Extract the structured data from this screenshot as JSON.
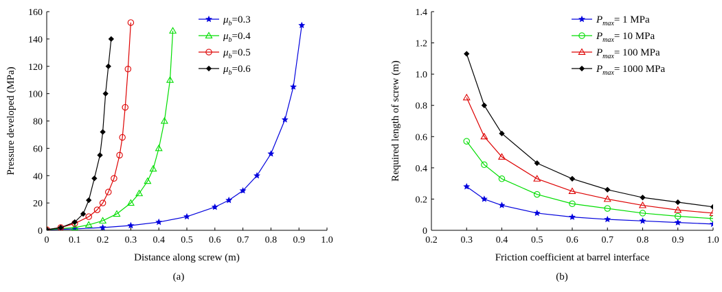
{
  "chart_data": [
    {
      "type": "line",
      "panel_label": "(a)",
      "xlabel": "Distance along screw (m)",
      "ylabel": "Pressure developed (MPa)",
      "xlim": [
        0,
        1.0
      ],
      "ylim": [
        0,
        160
      ],
      "xticks": [
        "0",
        "0.1",
        "0.2",
        "0.3",
        "0.4",
        "0.5",
        "0.6",
        "0.7",
        "0.8",
        "0.9",
        "1.0"
      ],
      "yticks": [
        "0",
        "20",
        "40",
        "60",
        "80",
        "100",
        "120",
        "140",
        "160"
      ],
      "legend_position": "top-right",
      "series": [
        {
          "name_symbol": "μ",
          "name_sub": "b",
          "name_value": "=0.3",
          "color": "#0000dd",
          "marker": "star",
          "x": [
            0,
            0.1,
            0.2,
            0.3,
            0.4,
            0.5,
            0.6,
            0.65,
            0.7,
            0.75,
            0.8,
            0.85,
            0.88,
            0.91
          ],
          "y": [
            0.5,
            1,
            2,
            3.5,
            6,
            10,
            17,
            22,
            29,
            40,
            56,
            81,
            105,
            150
          ]
        },
        {
          "name_symbol": "μ",
          "name_sub": "b",
          "name_value": "=0.4",
          "color": "#00dd00",
          "marker": "triangle",
          "x": [
            0,
            0.1,
            0.15,
            0.2,
            0.25,
            0.3,
            0.33,
            0.36,
            0.38,
            0.4,
            0.42,
            0.44,
            0.45
          ],
          "y": [
            0.5,
            2,
            4,
            7,
            12,
            20,
            27,
            36,
            45,
            60,
            80,
            110,
            146
          ]
        },
        {
          "name_symbol": "μ",
          "name_sub": "b",
          "name_value": "=0.5",
          "color": "#dd0000",
          "marker": "circle",
          "x": [
            0,
            0.05,
            0.1,
            0.15,
            0.18,
            0.2,
            0.22,
            0.24,
            0.26,
            0.27,
            0.28,
            0.29,
            0.3
          ],
          "y": [
            0.5,
            2,
            5,
            10,
            15,
            20,
            28,
            38,
            55,
            68,
            90,
            118,
            152
          ]
        },
        {
          "name_symbol": "μ",
          "name_sub": "b",
          "name_value": "=0.6",
          "color": "#000000",
          "marker": "diamond",
          "x": [
            0,
            0.05,
            0.1,
            0.13,
            0.15,
            0.17,
            0.19,
            0.2,
            0.21,
            0.22,
            0.23
          ],
          "y": [
            0.5,
            2,
            6,
            12,
            22,
            38,
            55,
            72,
            100,
            120,
            140
          ]
        }
      ]
    },
    {
      "type": "line",
      "panel_label": "(b)",
      "xlabel": "Friction coefficient at barrel interface",
      "ylabel": "Required length of screw (m)",
      "xlim": [
        0.2,
        1.0
      ],
      "ylim": [
        0,
        1.4
      ],
      "xticks": [
        "0.2",
        "0.3",
        "0.4",
        "0.5",
        "0.6",
        "0.7",
        "0.8",
        "0.9",
        "1.0"
      ],
      "yticks": [
        "0",
        "0.2",
        "0.4",
        "0.6",
        "0.8",
        "1.0",
        "1.2",
        "1.4"
      ],
      "legend_position": "top-right",
      "series": [
        {
          "name_symbol": "P",
          "name_sub": "max",
          "name_value": "= 1 MPa",
          "color": "#0000dd",
          "marker": "star",
          "x": [
            0.3,
            0.35,
            0.4,
            0.5,
            0.6,
            0.7,
            0.8,
            0.9,
            1.0
          ],
          "y": [
            0.28,
            0.2,
            0.16,
            0.11,
            0.085,
            0.07,
            0.06,
            0.05,
            0.04
          ]
        },
        {
          "name_symbol": "P",
          "name_sub": "max",
          "name_value": "= 10 MPa",
          "color": "#00dd00",
          "marker": "circle",
          "x": [
            0.3,
            0.35,
            0.4,
            0.5,
            0.6,
            0.7,
            0.8,
            0.9,
            1.0
          ],
          "y": [
            0.57,
            0.42,
            0.33,
            0.23,
            0.17,
            0.14,
            0.11,
            0.09,
            0.075
          ]
        },
        {
          "name_symbol": "P",
          "name_sub": "max",
          "name_value": "= 100 MPa",
          "color": "#dd0000",
          "marker": "triangle",
          "x": [
            0.3,
            0.35,
            0.4,
            0.5,
            0.6,
            0.7,
            0.8,
            0.9,
            1.0
          ],
          "y": [
            0.85,
            0.6,
            0.47,
            0.33,
            0.25,
            0.2,
            0.16,
            0.13,
            0.11
          ]
        },
        {
          "name_symbol": "P",
          "name_sub": "max",
          "name_value": "= 1000 MPa",
          "color": "#000000",
          "marker": "diamond",
          "x": [
            0.3,
            0.35,
            0.4,
            0.5,
            0.6,
            0.7,
            0.8,
            0.9,
            1.0
          ],
          "y": [
            1.13,
            0.8,
            0.62,
            0.43,
            0.33,
            0.26,
            0.21,
            0.18,
            0.15
          ]
        }
      ]
    }
  ]
}
